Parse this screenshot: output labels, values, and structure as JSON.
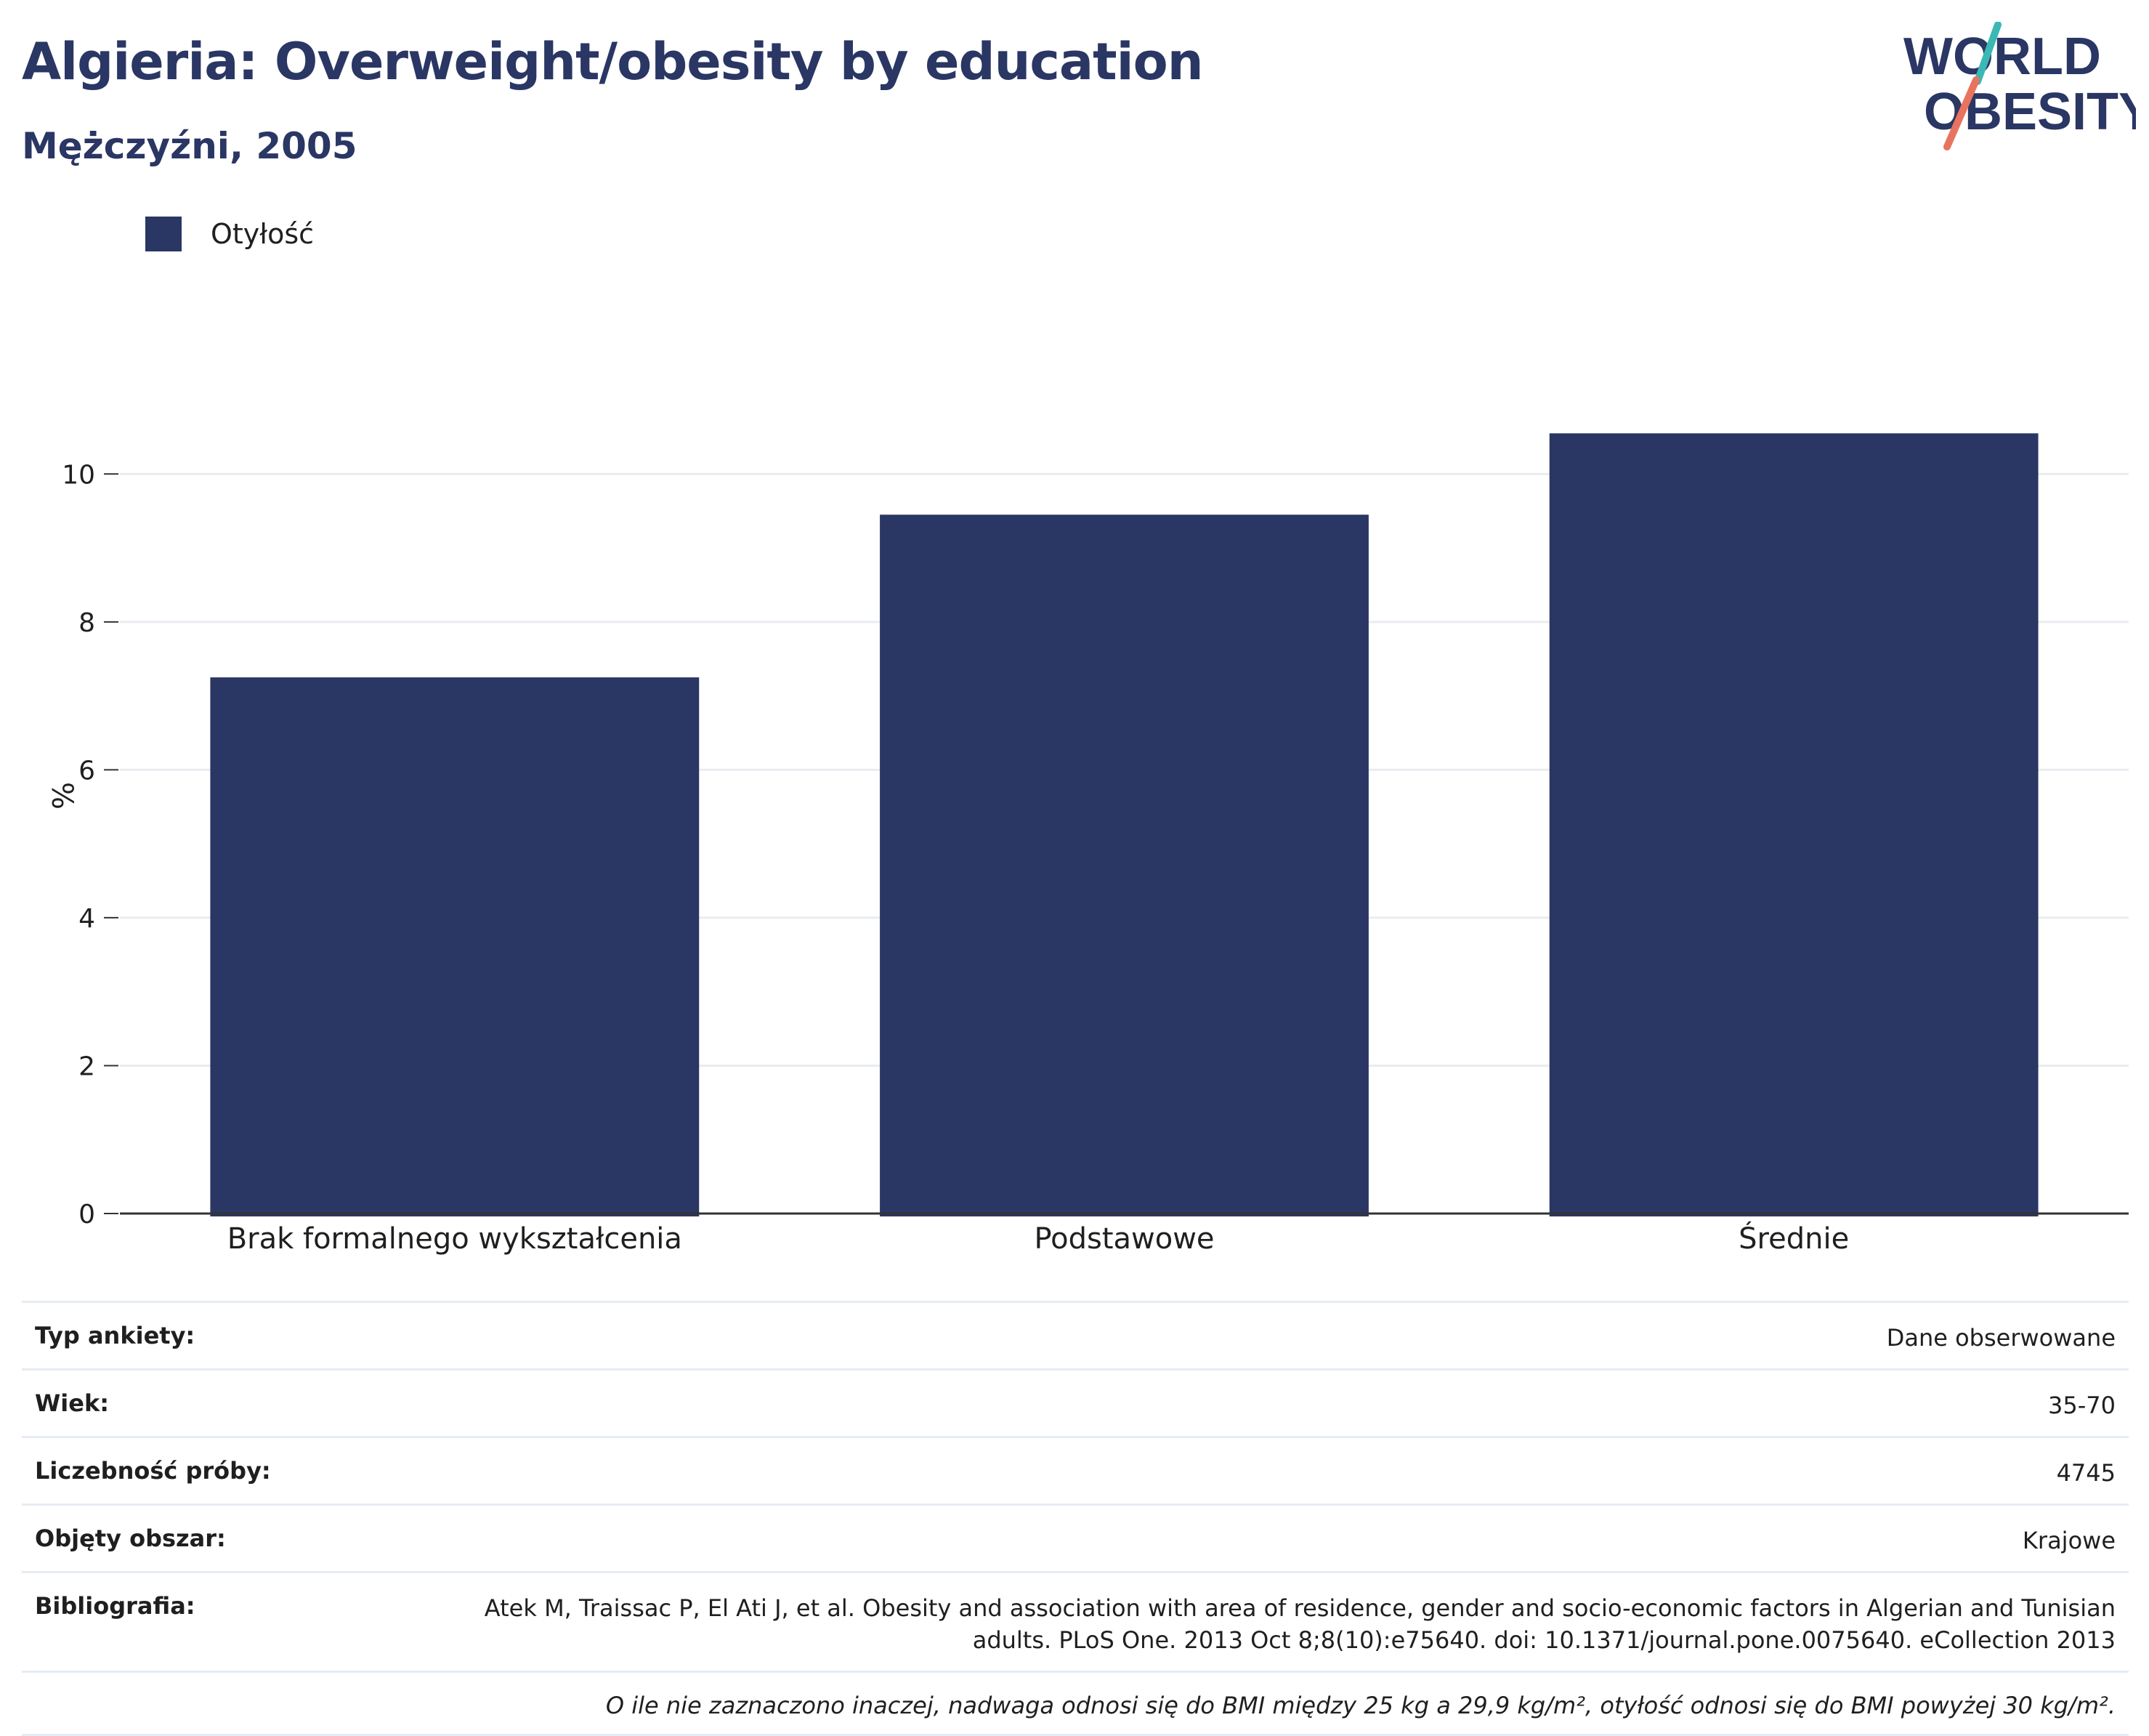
{
  "header": {
    "title": "Algieria: Overweight/obesity by education",
    "subtitle": "Mężczyźni, 2005"
  },
  "logo": {
    "line1": "WORLD",
    "line2": "OBESITY",
    "colors": {
      "navy": "#2a3663",
      "teal": "#3bb7b5",
      "coral": "#e8735f"
    }
  },
  "legend": {
    "label": "Otyłość"
  },
  "chart_data": {
    "type": "bar",
    "categories": [
      "Brak formalnego wykształcenia",
      "Podstawowe",
      "Średnie"
    ],
    "series": [
      {
        "name": "Otyłość",
        "values": [
          7.25,
          9.45,
          10.55
        ],
        "color": "#2a3663"
      }
    ],
    "ylabel": "%",
    "ylim": [
      0,
      11.3
    ],
    "yticks": [
      0,
      2,
      4,
      6,
      8,
      10
    ],
    "grid": true
  },
  "info": {
    "rows": [
      {
        "key": "Typ ankiety:",
        "value": "Dane obserwowane"
      },
      {
        "key": "Wiek:",
        "value": "35-70"
      },
      {
        "key": "Liczebność próby:",
        "value": "4745"
      },
      {
        "key": "Objęty obszar:",
        "value": "Krajowe"
      },
      {
        "key": "Bibliografia:",
        "value": "Atek M, Traissac P, El Ati J, et al. Obesity and association with area of residence, gender and socio-economic factors in Algerian and Tunisian adults. PLoS One. 2013 Oct 8;8(10):e75640. doi: 10.1371/journal.pone.0075640. eCollection 2013"
      }
    ],
    "note": "O ile nie zaznaczono inaczej, nadwaga odnosi się do BMI między 25 kg a 29,9 kg/m², otyłość odnosi się do BMI powyżej 30 kg/m²."
  }
}
